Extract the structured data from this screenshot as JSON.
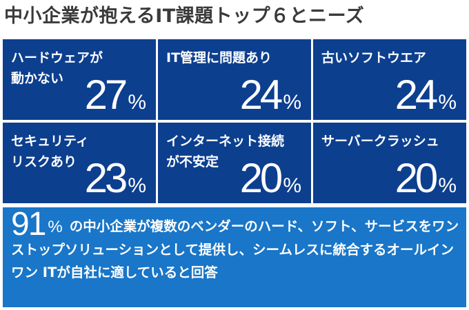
{
  "title": "中小企業が抱えるIT課題トップ６とニーズ",
  "cells": [
    {
      "label1": "ハードウェアが",
      "label2": "動かない",
      "value": "27",
      "unit": "%"
    },
    {
      "label1": "IT管理に問題あり",
      "label2": "",
      "value": "24",
      "unit": "%"
    },
    {
      "label1": "古いソフトウエア",
      "label2": "",
      "value": "24",
      "unit": "%"
    },
    {
      "label1": "セキュリティ",
      "label2": "リスクあり",
      "value": "23",
      "unit": "%"
    },
    {
      "label1": "インターネット接続",
      "label2": "が不安定",
      "value": "20",
      "unit": "%"
    },
    {
      "label1": "サーバークラッシュ",
      "label2": "",
      "value": "20",
      "unit": "%"
    }
  ],
  "banner": {
    "value": "91",
    "unit": "%",
    "text": "の中小企業が複数のベンダーのハード、ソフト、サービスをワンストップソリューションとして提供し、シームレスに統合するオールインワン ITが自社に適していると回答"
  },
  "colors": {
    "cell_bg": "#0d3f8f",
    "banner_bg": "#1976c8",
    "title": "#3a3a3a"
  }
}
